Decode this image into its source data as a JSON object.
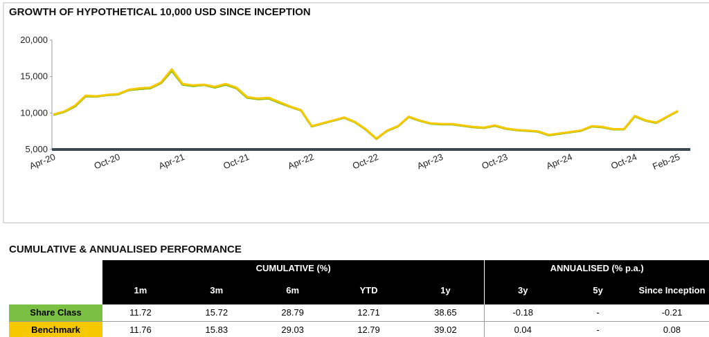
{
  "chart_data": {
    "type": "line",
    "title": "GROWTH OF HYPOTHETICAL 10,000 USD SINCE INCEPTION",
    "categories": [
      "Apr-20",
      null,
      null,
      null,
      null,
      null,
      "Oct-20",
      null,
      null,
      null,
      null,
      null,
      "Apr-21",
      null,
      null,
      null,
      null,
      null,
      "Oct-21",
      null,
      null,
      null,
      null,
      null,
      "Apr-22",
      null,
      null,
      null,
      null,
      null,
      "Oct-22",
      null,
      null,
      null,
      null,
      null,
      "Apr-23",
      null,
      null,
      null,
      null,
      null,
      "Oct-23",
      null,
      null,
      null,
      null,
      null,
      "Apr-24",
      null,
      null,
      null,
      null,
      null,
      "Oct-24",
      null,
      null,
      null,
      "Feb-25"
    ],
    "series": [
      {
        "color": "#7ab800",
        "values": [
          9750,
          10150,
          10900,
          12300,
          12250,
          12450,
          12550,
          13150,
          13300,
          13400,
          14100,
          15800,
          13900,
          13700,
          13850,
          13500,
          13900,
          13400,
          12100,
          11900,
          12000,
          11400,
          10850,
          10350,
          8150,
          8550,
          8950,
          9350,
          8750,
          7750,
          6450,
          7550,
          8150,
          9450,
          8950,
          8550,
          8450,
          8450,
          8250,
          8050,
          7950,
          8250,
          7850,
          7650,
          7550,
          7450,
          6950,
          7150,
          7350,
          7550,
          8150,
          8050,
          7750,
          7750,
          9550,
          8950,
          8650,
          9450,
          10250
        ]
      },
      {
        "color": "#f5c800",
        "values": [
          9800,
          10200,
          11000,
          12400,
          12300,
          12500,
          12600,
          13200,
          13400,
          13500,
          14200,
          16000,
          14000,
          13800,
          13900,
          13600,
          14000,
          13500,
          12200,
          12000,
          12100,
          11500,
          10900,
          10400,
          8200,
          8600,
          9000,
          9400,
          8800,
          7800,
          6500,
          7600,
          8200,
          9500,
          9000,
          8600,
          8500,
          8500,
          8300,
          8100,
          8000,
          8300,
          7900,
          7700,
          7600,
          7500,
          7000,
          7200,
          7400,
          7600,
          8200,
          8100,
          7800,
          7800,
          9600,
          9000,
          8700,
          9500,
          10300
        ]
      }
    ],
    "ylim": [
      5000,
      20000
    ],
    "yticks": [
      {
        "value": 5000,
        "label": "5,000"
      },
      {
        "value": 10000,
        "label": "10,000"
      },
      {
        "value": 15000,
        "label": "15,000"
      },
      {
        "value": 20000,
        "label": "20,000"
      }
    ],
    "grid": false
  },
  "table": {
    "title": "CUMULATIVE & ANNUALISED PERFORMANCE",
    "group_headers": [
      "CUMULATIVE (%)",
      "ANNUALISED (% p.a.)"
    ],
    "columns": [
      "1m",
      "3m",
      "6m",
      "YTD",
      "1y",
      "3y",
      "5y",
      "Since Inception"
    ],
    "rows": [
      {
        "label": "Share Class",
        "values": [
          11.72,
          15.72,
          28.79,
          12.71,
          38.65,
          -0.18,
          "-",
          -0.21
        ]
      },
      {
        "label": "Benchmark",
        "values": [
          11.76,
          15.83,
          29.03,
          12.79,
          39.02,
          0.04,
          "-",
          0.08
        ]
      }
    ]
  }
}
